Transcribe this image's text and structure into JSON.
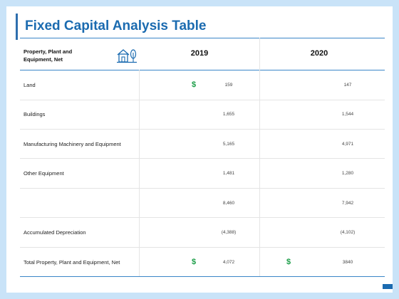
{
  "title": "Fixed Capital Analysis Table",
  "header": {
    "label": "Property, Plant and Equipment, Net",
    "icon": "house-tree-icon",
    "years": [
      "2019",
      "2020"
    ]
  },
  "currency_symbol": "$",
  "colors": {
    "accent": "#1b6bb0",
    "dollar": "#1d9e49",
    "background": "#c9e3f8"
  },
  "rows": [
    {
      "label": "Land",
      "v2019": "159",
      "v2020": "147"
    },
    {
      "label": "Buildings",
      "v2019": "1,655",
      "v2020": "1,544"
    },
    {
      "label": "Manufacturing Machinery and Equipment",
      "v2019": "5,165",
      "v2020": "4,971"
    },
    {
      "label": "Other Equipment",
      "v2019": "1,481",
      "v2020": "1,280"
    },
    {
      "label": "",
      "v2019": "8,460",
      "v2020": "7,942"
    },
    {
      "label": "Accumulated Depreciation",
      "v2019": "(4,388)",
      "v2020": "(4,102)"
    },
    {
      "label": "Total Property, Plant and Equipment, Net",
      "v2019": "4,072",
      "v2020": "3840"
    }
  ]
}
